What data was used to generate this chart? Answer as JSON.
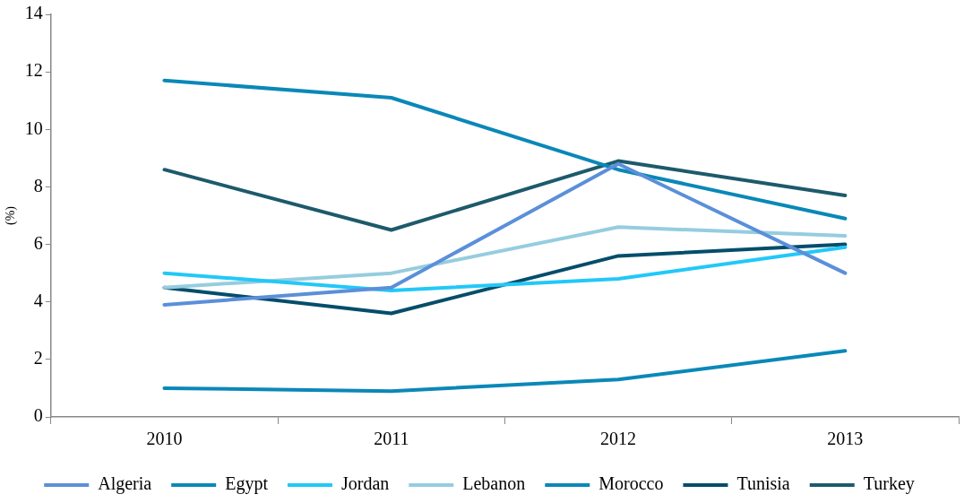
{
  "chart_data": {
    "type": "line",
    "ylabel": "(%)",
    "categories": [
      "2010",
      "2011",
      "2012",
      "2013"
    ],
    "series": [
      {
        "name": "Algeria",
        "color": "#5b8fd9",
        "values": [
          3.9,
          4.5,
          8.8,
          5.0
        ]
      },
      {
        "name": "Egypt",
        "color": "#0a88b8",
        "values": [
          11.7,
          11.1,
          8.6,
          6.9
        ]
      },
      {
        "name": "Jordan",
        "color": "#22c8f8",
        "values": [
          5.0,
          4.4,
          4.8,
          5.9
        ]
      },
      {
        "name": "Lebanon",
        "color": "#95cddf",
        "values": [
          4.5,
          5.0,
          6.6,
          6.3
        ]
      },
      {
        "name": "Morocco",
        "color": "#0a88b8",
        "values": [
          1.0,
          0.9,
          1.3,
          2.3
        ]
      },
      {
        "name": "Tunisia",
        "color": "#044d6b",
        "values": [
          4.5,
          3.6,
          5.6,
          6.0
        ]
      },
      {
        "name": "Turkey",
        "color": "#1d5a6b",
        "values": [
          8.6,
          6.5,
          8.9,
          7.7
        ]
      }
    ],
    "ylim": [
      0,
      14
    ],
    "yticks": [
      0,
      2,
      4,
      6,
      8,
      10,
      12,
      14
    ],
    "grid": false,
    "legend": "bottom",
    "marker": "none",
    "line_style": "solid"
  }
}
